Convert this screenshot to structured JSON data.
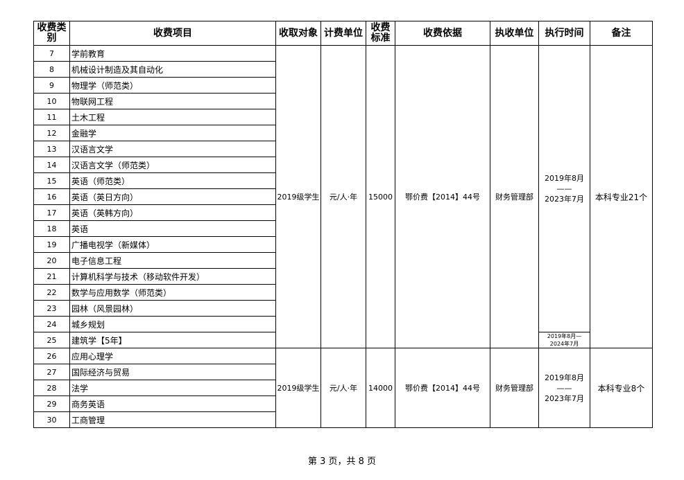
{
  "headers": [
    "收费类别",
    "收费项目",
    "收取对象",
    "计费单位",
    "收费标准",
    "收费依据",
    "执收单位",
    "执行时间",
    "备注"
  ],
  "group1": {
    "rows": [
      {
        "no": "7",
        "name": "学前教育"
      },
      {
        "no": "8",
        "name": "机械设计制造及其自动化"
      },
      {
        "no": "9",
        "name": "物理学（师范类）"
      },
      {
        "no": "10",
        "name": "物联网工程"
      },
      {
        "no": "11",
        "name": "土木工程"
      },
      {
        "no": "12",
        "name": "金融学"
      },
      {
        "no": "13",
        "name": "汉语言文学"
      },
      {
        "no": "14",
        "name": "汉语言文学（师范类）"
      },
      {
        "no": "15",
        "name": "英语（师范类）"
      },
      {
        "no": "16",
        "name": "英语（英日方向）"
      },
      {
        "no": "17",
        "name": "英语（英韩方向）"
      },
      {
        "no": "18",
        "name": "英语"
      },
      {
        "no": "19",
        "name": "广播电视学（新媒体）"
      },
      {
        "no": "20",
        "name": "电子信息工程"
      },
      {
        "no": "21",
        "name": "计算机科学与技术（移动软件开发）"
      },
      {
        "no": "22",
        "name": "数学与应用数学（师范类）"
      },
      {
        "no": "23",
        "name": "园林（风景园林）"
      },
      {
        "no": "24",
        "name": "城乡规划"
      },
      {
        "no": "25",
        "name": "建筑学【5年】"
      }
    ],
    "target": "2019级学生",
    "unit": "元/人·年",
    "standard": "15000",
    "basis": "鄂价费【2014】44号",
    "collector": "财务管理部",
    "time_l1": "2019年8月",
    "time_l2": "——",
    "time_l3": "2023年7月",
    "time_alt_l1": "2019年8月—",
    "time_alt_l2": "2024年7月",
    "note": "本科专业21个"
  },
  "group2": {
    "rows": [
      {
        "no": "26",
        "name": "应用心理学"
      },
      {
        "no": "27",
        "name": "国际经济与贸易"
      },
      {
        "no": "28",
        "name": "法学"
      },
      {
        "no": "29",
        "name": "商务英语"
      },
      {
        "no": "30",
        "name": "工商管理"
      }
    ],
    "target": "2019级学生",
    "unit": "元/人·年",
    "standard": "14000",
    "basis": "鄂价费【2014】44号",
    "collector": "财务管理部",
    "time_l1": "2019年8月",
    "time_l2": "——",
    "time_l3": "2023年7月",
    "note": "本科专业8个"
  },
  "footer": "第 3 页，共 8 页"
}
